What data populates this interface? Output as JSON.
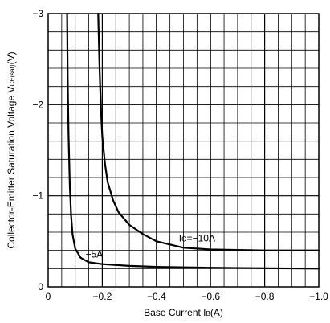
{
  "chart_data": {
    "type": "line",
    "title": "",
    "xlabel": {
      "prefix": "Base Current I",
      "subscript": "B",
      "suffix": "(A)"
    },
    "ylabel": {
      "prefix": "Collector-Emitter Saturation Voltage V",
      "subscript": "CE(sat)",
      "suffix": "(V)"
    },
    "xlim": [
      0,
      -1.0
    ],
    "ylim": [
      0,
      -3
    ],
    "grid": true,
    "x_ticks": [
      {
        "value": 0,
        "label": "0"
      },
      {
        "value": -0.2,
        "label": "−0.2"
      },
      {
        "value": -0.4,
        "label": "−0.4"
      },
      {
        "value": -0.6,
        "label": "−0.6"
      },
      {
        "value": -0.8,
        "label": "−0.8"
      },
      {
        "value": -1.0,
        "label": "−1.0"
      }
    ],
    "y_ticks": [
      {
        "value": 0,
        "label": "0"
      },
      {
        "value": -1,
        "label": "−1"
      },
      {
        "value": -2,
        "label": "−2"
      },
      {
        "value": -3,
        "label": "−3"
      }
    ],
    "series": [
      {
        "name": "Ic=−10A",
        "label_parts": {
          "prefix": "I",
          "subscript": "C",
          "suffix": "=−10A"
        },
        "x": [
          -0.185,
          -0.19,
          -0.195,
          -0.2,
          -0.21,
          -0.22,
          -0.24,
          -0.26,
          -0.3,
          -0.35,
          -0.4,
          -0.5,
          -0.6,
          -0.8,
          -1.0
        ],
        "y": [
          -3.0,
          -2.4,
          -1.95,
          -1.65,
          -1.35,
          -1.15,
          -0.95,
          -0.82,
          -0.68,
          -0.58,
          -0.5,
          -0.43,
          -0.41,
          -0.4,
          -0.4
        ]
      },
      {
        "name": "−5A",
        "label_parts": {
          "prefix": "",
          "subscript": "",
          "suffix": "−5A"
        },
        "x": [
          -0.07,
          -0.072,
          -0.075,
          -0.08,
          -0.085,
          -0.09,
          -0.1,
          -0.12,
          -0.15,
          -0.2,
          -0.3,
          -0.4,
          -0.6,
          -0.8,
          -1.0
        ],
        "y": [
          -3.0,
          -2.3,
          -1.7,
          -1.1,
          -0.78,
          -0.58,
          -0.42,
          -0.32,
          -0.27,
          -0.25,
          -0.23,
          -0.22,
          -0.21,
          -0.205,
          -0.2
        ]
      }
    ]
  }
}
